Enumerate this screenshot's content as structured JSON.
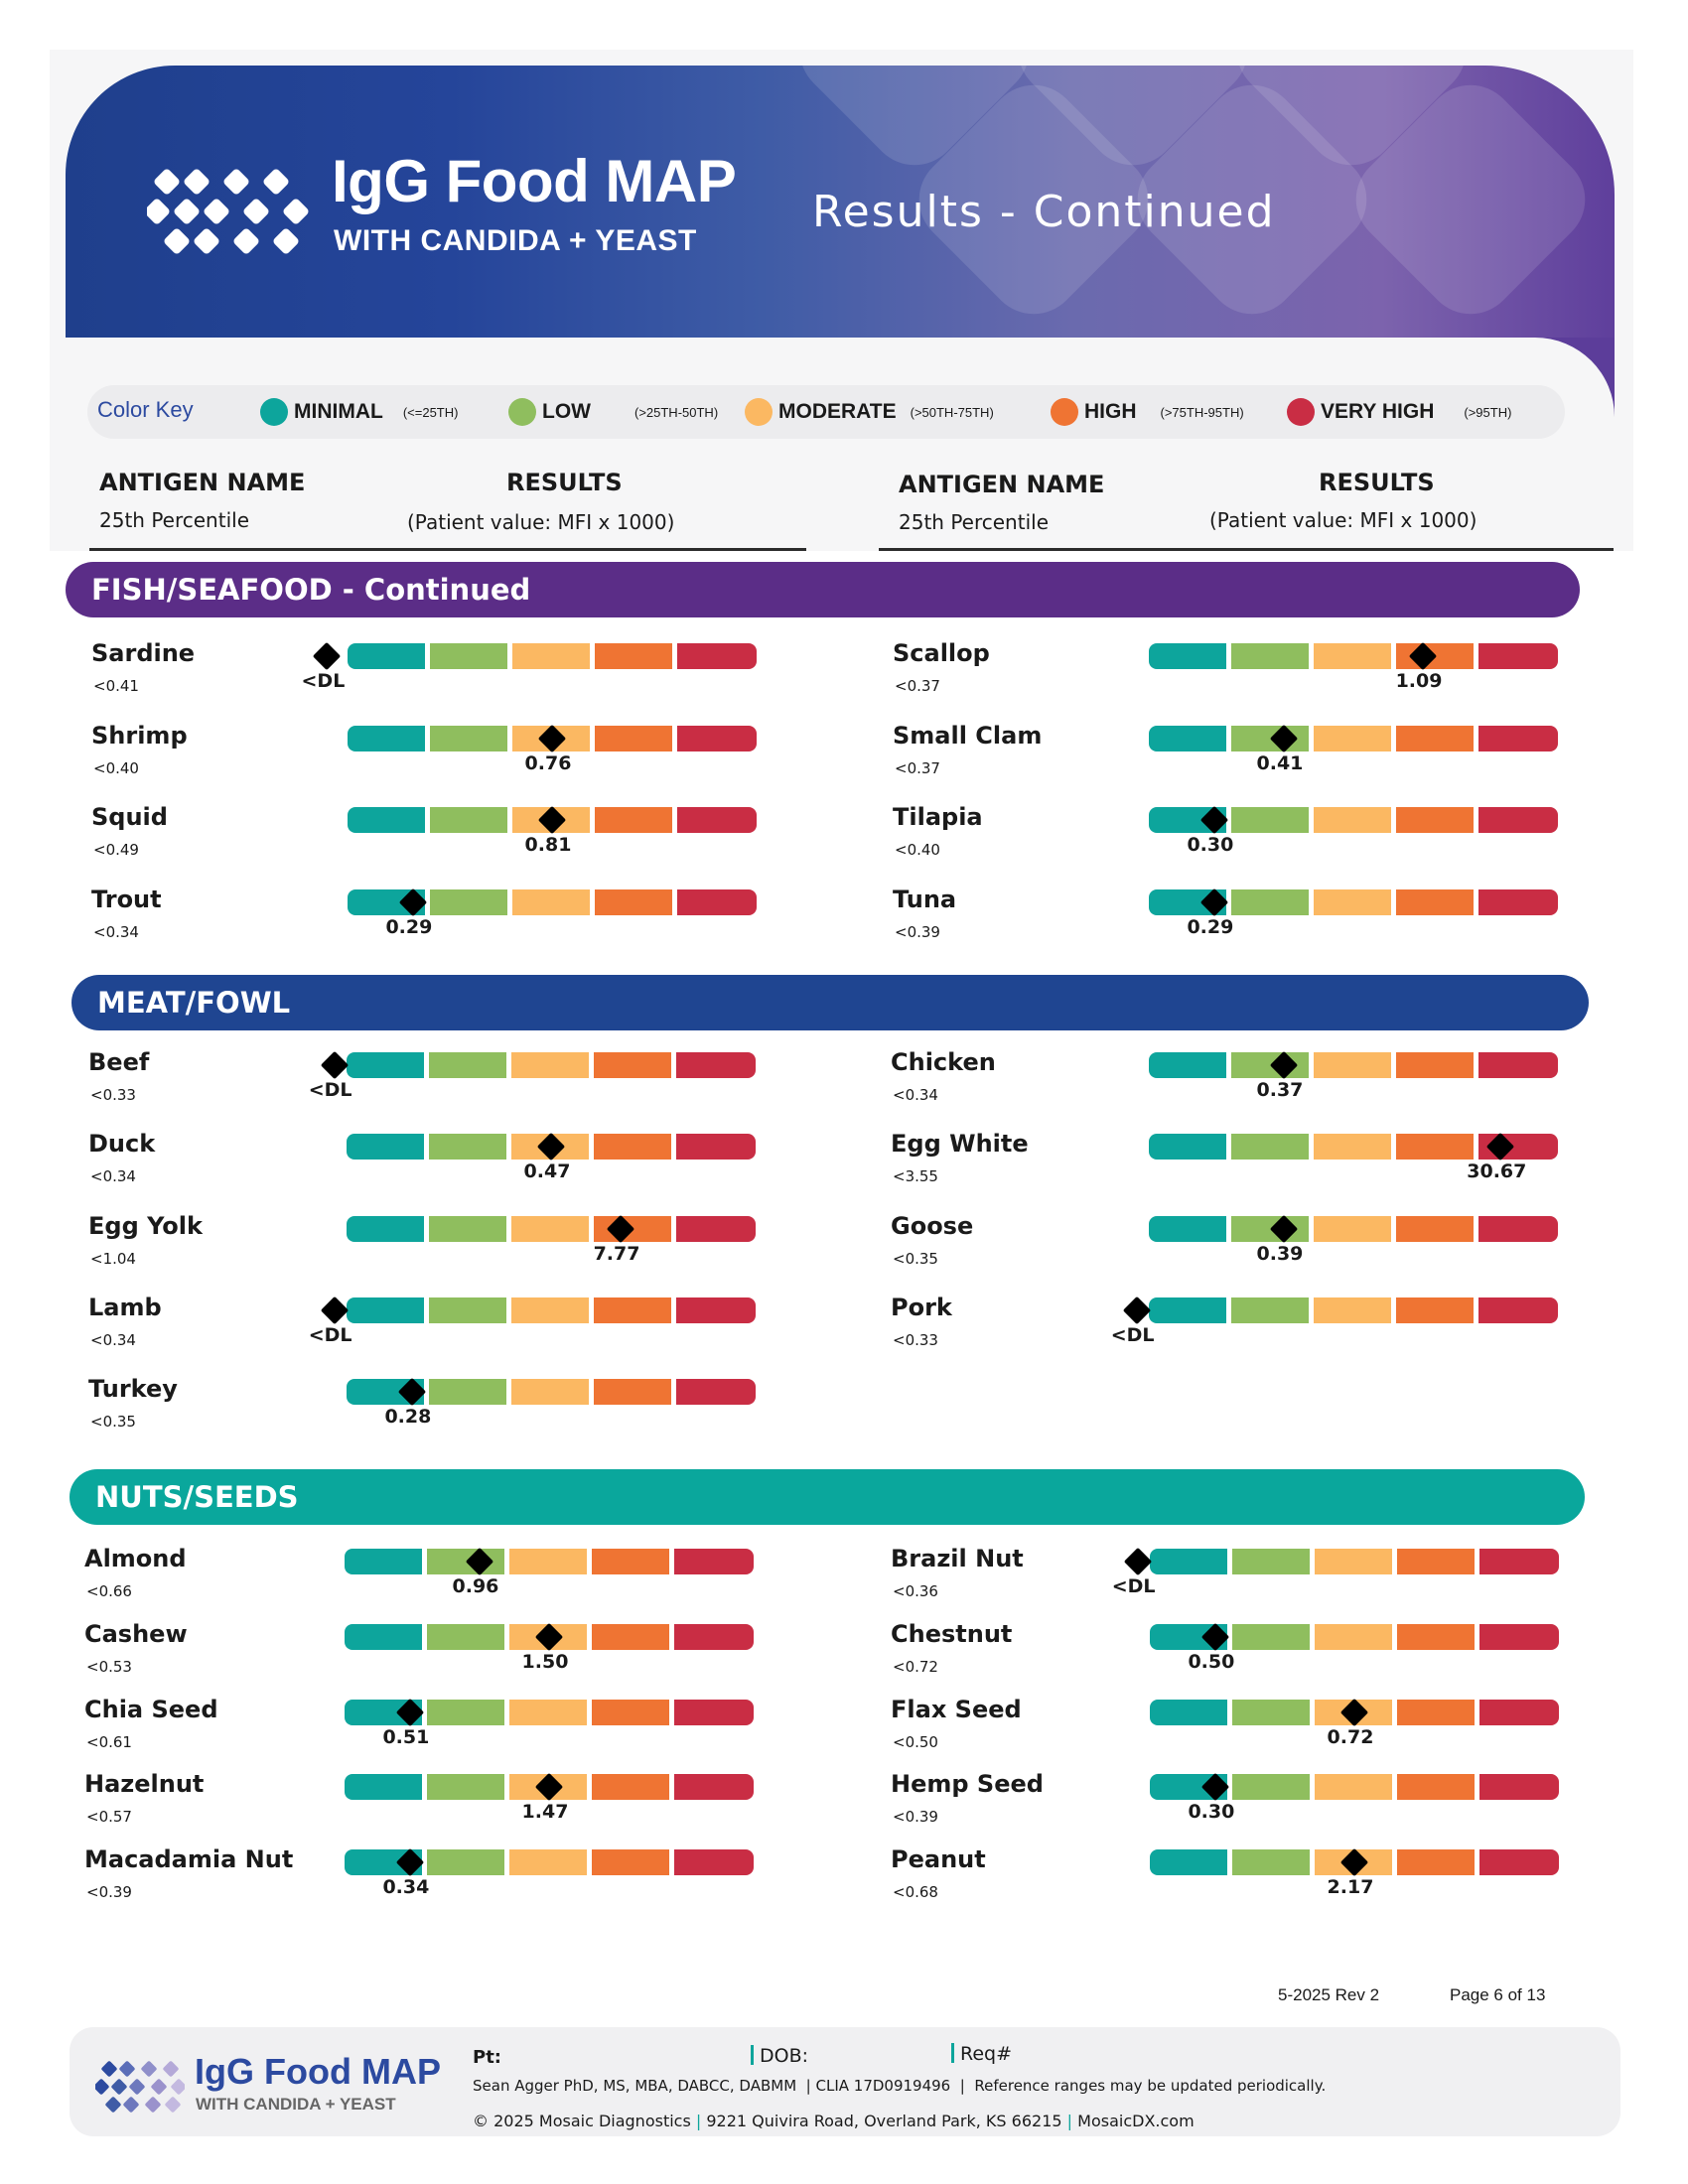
{
  "header": {
    "brand_title": "IgG Food MAP",
    "brand_subtitle": "WITH CANDIDA + YEAST",
    "page_title": "Results - Continued"
  },
  "color_key": {
    "title": "Color Key",
    "items": [
      {
        "label": "MINIMAL",
        "range": "(<=25TH)",
        "color": "#0da59c"
      },
      {
        "label": "LOW",
        "range": "(>25TH-50TH)",
        "color": "#8fbe5e"
      },
      {
        "label": "MODERATE",
        "range": "(>50TH-75TH)",
        "color": "#fbb862"
      },
      {
        "label": "HIGH",
        "range": "(>75TH-95TH)",
        "color": "#ef7433"
      },
      {
        "label": "VERY HIGH",
        "range": "(>95TH)",
        "color": "#c92d44"
      }
    ]
  },
  "column_headers": {
    "antigen_name": "ANTIGEN NAME",
    "percentile": "25th Percentile",
    "results": "RESULTS",
    "patient_value": "(Patient value: MFI x 1000)"
  },
  "sections": [
    {
      "title": "FISH/SEAFOOD - Continued",
      "color": "#5b2d87",
      "items": [
        {
          "name": "Sardine",
          "pct": "<0.41",
          "value": "<DL",
          "position": -0.05
        },
        {
          "name": "Scallop",
          "pct": "<0.37",
          "value": "1.09",
          "position": 0.67
        },
        {
          "name": "Shrimp",
          "pct": "<0.40",
          "value": "0.76",
          "position": 0.5
        },
        {
          "name": "Small Clam",
          "pct": "<0.37",
          "value": "0.41",
          "position": 0.33
        },
        {
          "name": "Squid",
          "pct": "<0.49",
          "value": "0.81",
          "position": 0.5
        },
        {
          "name": "Tilapia",
          "pct": "<0.40",
          "value": "0.30",
          "position": 0.16
        },
        {
          "name": "Trout",
          "pct": "<0.34",
          "value": "0.29",
          "position": 0.16
        },
        {
          "name": "Tuna",
          "pct": "<0.39",
          "value": "0.29",
          "position": 0.16
        }
      ]
    },
    {
      "title": "MEAT/FOWL",
      "color": "#1f4591",
      "items": [
        {
          "name": "Beef",
          "pct": "<0.33",
          "value": "<DL",
          "position": -0.03
        },
        {
          "name": "Chicken",
          "pct": "<0.34",
          "value": "0.37",
          "position": 0.33
        },
        {
          "name": "Duck",
          "pct": "<0.34",
          "value": "0.47",
          "position": 0.5
        },
        {
          "name": "Egg White",
          "pct": "<3.55",
          "value": "30.67",
          "position": 0.86
        },
        {
          "name": "Egg Yolk",
          "pct": "<1.04",
          "value": "7.77",
          "position": 0.67
        },
        {
          "name": "Goose",
          "pct": "<0.35",
          "value": "0.39",
          "position": 0.33
        },
        {
          "name": "Lamb",
          "pct": "<0.34",
          "value": "<DL",
          "position": -0.03
        },
        {
          "name": "Pork",
          "pct": "<0.33",
          "value": "<DL",
          "position": -0.03
        },
        {
          "name": "Turkey",
          "pct": "<0.35",
          "value": "0.28",
          "position": 0.16
        }
      ]
    },
    {
      "title": "NUTS/SEEDS",
      "color": "#0aa79c",
      "items": [
        {
          "name": "Almond",
          "pct": "<0.66",
          "value": "0.96",
          "position": 0.33
        },
        {
          "name": "Brazil Nut",
          "pct": "<0.36",
          "value": "<DL",
          "position": -0.03
        },
        {
          "name": "Cashew",
          "pct": "<0.53",
          "value": "1.50",
          "position": 0.5
        },
        {
          "name": "Chestnut",
          "pct": "<0.72",
          "value": "0.50",
          "position": 0.16
        },
        {
          "name": "Chia Seed",
          "pct": "<0.61",
          "value": "0.51",
          "position": 0.16
        },
        {
          "name": "Flax Seed",
          "pct": "<0.50",
          "value": "0.72",
          "position": 0.5
        },
        {
          "name": "Hazelnut",
          "pct": "<0.57",
          "value": "1.47",
          "position": 0.5
        },
        {
          "name": "Hemp Seed",
          "pct": "<0.39",
          "value": "0.30",
          "position": 0.16
        },
        {
          "name": "Macadamia Nut",
          "pct": "<0.39",
          "value": "0.34",
          "position": 0.16
        },
        {
          "name": "Peanut",
          "pct": "<0.68",
          "value": "2.17",
          "position": 0.5
        }
      ]
    }
  ],
  "footer": {
    "rev": "5-2025 Rev 2",
    "page": "Page 6 of 13",
    "brand_title": "IgG Food MAP",
    "brand_subtitle": "WITH CANDIDA + YEAST",
    "pt_label": "Pt:",
    "dob_label": "DOB:",
    "req_label": "Req#",
    "director": "Sean Agger PhD, MS, MBA, DABCC, DABMM",
    "clia": "CLIA 17D0919496",
    "note": "Reference ranges may be updated periodically.",
    "copyright": "© 2025 Mosaic Diagnostics",
    "address": "9221 Quivira Road, Overland Park, KS 66215",
    "website": "MosaicDX.com"
  }
}
